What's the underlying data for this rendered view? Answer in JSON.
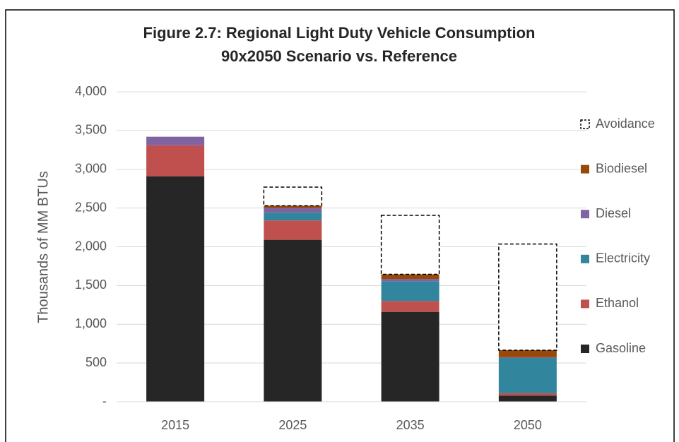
{
  "chart_data": {
    "type": "stacked_bar",
    "title": "Figure 2.7: Regional Light Duty Vehicle Consumption",
    "subtitle": "90x2050 Scenario vs. Reference",
    "y_label": "Thousands of MM BTUs",
    "categories": [
      "2015",
      "2025",
      "2035",
      "2050"
    ],
    "series": [
      {
        "name": "Gasoline",
        "color": "#262626",
        "values": [
          2910,
          2090,
          1160,
          80
        ]
      },
      {
        "name": "Ethanol",
        "color": "#c0504d",
        "values": [
          400,
          250,
          140,
          30
        ]
      },
      {
        "name": "Electricity",
        "color": "#31859c",
        "values": [
          0,
          100,
          255,
          455
        ]
      },
      {
        "name": "Diesel",
        "color": "#8064a2",
        "values": [
          110,
          60,
          30,
          10
        ]
      },
      {
        "name": "Biodiesel",
        "color": "#984807",
        "values": [
          0,
          30,
          60,
          90
        ]
      },
      {
        "name": "Avoidance",
        "color": "#ffffff",
        "border": "dashed",
        "values": [
          0,
          240,
          760,
          1370
        ]
      }
    ],
    "ylim": [
      0,
      4000
    ],
    "yticks": [
      {
        "value": 0,
        "label": "-"
      },
      500,
      {
        "value": 1000,
        "label": "1,000"
      },
      {
        "value": 1500,
        "label": "1,500"
      },
      {
        "value": 2000,
        "label": "2,000"
      },
      {
        "value": 2500,
        "label": "2,500"
      },
      {
        "value": 3000,
        "label": "3,000"
      },
      {
        "value": 3500,
        "label": "3,500"
      },
      {
        "value": 4000,
        "label": "4,000"
      }
    ],
    "grid": true,
    "legend": "right"
  }
}
